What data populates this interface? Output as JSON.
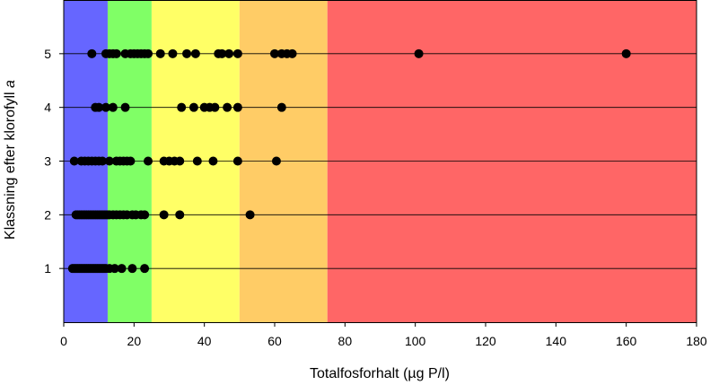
{
  "chart_data": {
    "type": "scatter",
    "xlabel": "Totalfosforhalt (µg P/l)",
    "ylabel": {
      "main": "Klassning efter klorofyll ",
      "italic": "a"
    },
    "xlim": [
      0,
      180
    ],
    "ylim": [
      0,
      6
    ],
    "xticks": [
      0,
      20,
      40,
      60,
      80,
      100,
      120,
      140,
      160,
      180
    ],
    "yticks": [
      1,
      2,
      3,
      4,
      5
    ],
    "grid": "horizontal",
    "bands": [
      {
        "from": 0,
        "to": 12.5,
        "color": "#6666ff"
      },
      {
        "from": 12.5,
        "to": 25,
        "color": "#80ff66"
      },
      {
        "from": 25,
        "to": 50,
        "color": "#ffff66"
      },
      {
        "from": 50,
        "to": 75,
        "color": "#ffcc66"
      },
      {
        "from": 75,
        "to": 180,
        "color": "#ff6666"
      }
    ],
    "point_color": "#000000",
    "series": [
      {
        "y": 1,
        "x": [
          2.5,
          3,
          3.5,
          4,
          4.5,
          5,
          5.5,
          6,
          6.5,
          7,
          7.5,
          8,
          8.5,
          9,
          9.5,
          10,
          10.5,
          11,
          11.5,
          12,
          13,
          14.5,
          16.5,
          19.5,
          23
        ]
      },
      {
        "y": 2,
        "x": [
          3.5,
          4,
          4.5,
          5,
          5.5,
          6,
          6.5,
          7,
          7.5,
          8,
          8.5,
          9,
          9.5,
          10,
          10.5,
          11,
          11.5,
          12,
          12.5,
          13,
          14,
          15,
          16,
          17,
          18,
          19.5,
          20.5,
          22,
          23,
          28.5,
          33,
          53
        ]
      },
      {
        "y": 3,
        "x": [
          3,
          5,
          6,
          7,
          8,
          9,
          10,
          11,
          13,
          15,
          16,
          17,
          18,
          19,
          24,
          28.5,
          30,
          31.5,
          33,
          38,
          42.5,
          49.5,
          60.5
        ]
      },
      {
        "y": 4,
        "x": [
          9,
          10,
          12,
          14,
          17.5,
          33.5,
          37,
          40,
          41.5,
          43,
          46.5,
          49.5,
          62
        ]
      },
      {
        "y": 5,
        "x": [
          8,
          12,
          13,
          14,
          15,
          17.5,
          19,
          20,
          21,
          22,
          23,
          24,
          27.5,
          31,
          35,
          37.5,
          44,
          45,
          47,
          49.5,
          60,
          62,
          63.5,
          65,
          101,
          160
        ]
      }
    ]
  }
}
